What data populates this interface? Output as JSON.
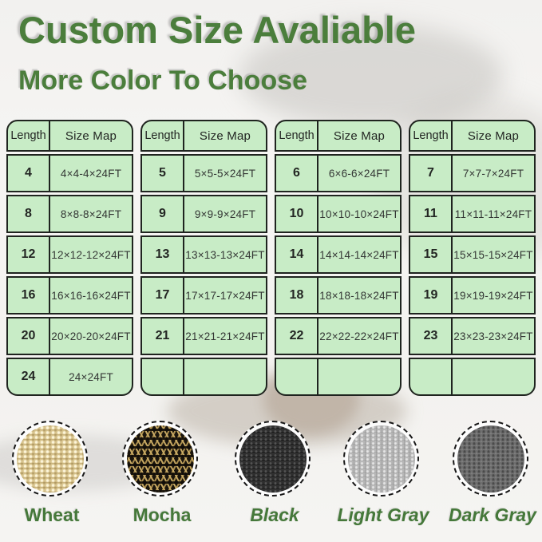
{
  "header": {
    "title": "Custom Size Avaliable",
    "subtitle": "More Color To Choose"
  },
  "size_tables": {
    "columns": [
      "Length",
      "Size Map"
    ],
    "tables": [
      {
        "rows": [
          [
            "4",
            "4×4-4×24FT"
          ],
          [
            "8",
            "8×8-8×24FT"
          ],
          [
            "12",
            "12×12-12×24FT"
          ],
          [
            "16",
            "16×16-16×24FT"
          ],
          [
            "20",
            "20×20-20×24FT"
          ],
          [
            "24",
            "24×24FT"
          ]
        ]
      },
      {
        "rows": [
          [
            "5",
            "5×5-5×24FT"
          ],
          [
            "9",
            "9×9-9×24FT"
          ],
          [
            "13",
            "13×13-13×24FT"
          ],
          [
            "17",
            "17×17-17×24FT"
          ],
          [
            "21",
            "21×21-21×24FT"
          ],
          [
            "",
            ""
          ]
        ]
      },
      {
        "rows": [
          [
            "6",
            "6×6-6×24FT"
          ],
          [
            "10",
            "10×10-10×24FT"
          ],
          [
            "14",
            "14×14-14×24FT"
          ],
          [
            "18",
            "18×18-18×24FT"
          ],
          [
            "22",
            "22×22-22×24FT"
          ],
          [
            "",
            ""
          ]
        ]
      },
      {
        "rows": [
          [
            "7",
            "7×7-7×24FT"
          ],
          [
            "11",
            "11×11-11×24FT"
          ],
          [
            "15",
            "15×15-15×24FT"
          ],
          [
            "19",
            "19×19-19×24FT"
          ],
          [
            "23",
            "23×23-23×24FT"
          ],
          [
            "",
            ""
          ]
        ]
      }
    ]
  },
  "colors": {
    "items": [
      {
        "name": "Wheat",
        "swatch": "wheat"
      },
      {
        "name": "Mocha",
        "swatch": "mocha"
      },
      {
        "name": "Black",
        "swatch": "black"
      },
      {
        "name": "Light Gray",
        "swatch": "light-gray"
      },
      {
        "name": "Dark Gray",
        "swatch": "dark-gray"
      }
    ]
  },
  "theme": {
    "title_green": "#4b7e3c",
    "label_green": "#45783a",
    "cell_green": "#c8ecc6",
    "table_border": "#1f241f",
    "swatch_wheat": "#d8c48e",
    "swatch_mocha": "#1a150d",
    "swatch_black": "#2e2e2e",
    "swatch_light_gray": "#b6b6b6",
    "swatch_dark_gray": "#6f6f6f"
  }
}
